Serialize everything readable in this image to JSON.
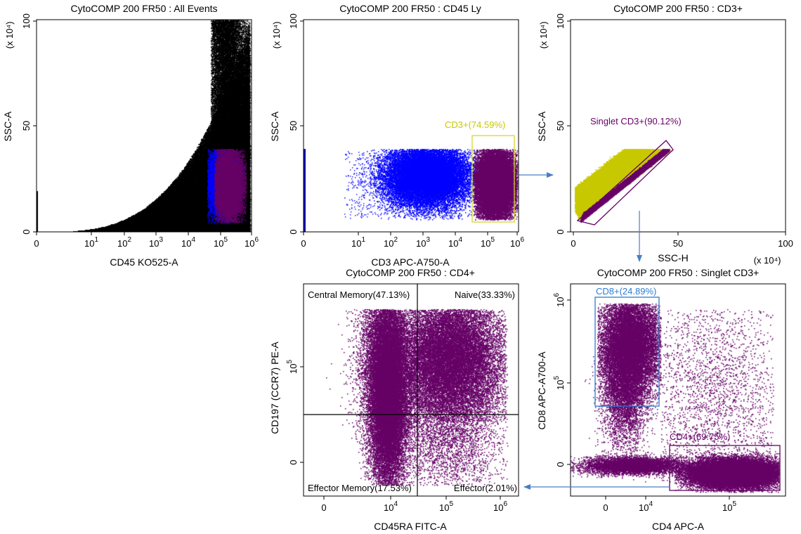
{
  "colors": {
    "black": "#000000",
    "blue": "#0000ff",
    "purple": "#660066",
    "yellow": "#c8c800",
    "gate_yellow": "#d6d630",
    "gate_blue": "#2c7cd1",
    "arrow": "#4a7ec4"
  },
  "chart_data": [
    {
      "type": "scatter",
      "title": "CytoCOMP 200 FR50 : All Events",
      "xlabel": "CD45 KO525-A",
      "ylabel": "SSC-A",
      "yscale_label": "(x 10⁴)",
      "xscale": "biexponential",
      "x_ticks": [
        {
          "label": "0",
          "sup": ""
        },
        {
          "label": "10",
          "sup": "1"
        },
        {
          "label": "10",
          "sup": "2"
        },
        {
          "label": "10",
          "sup": "3"
        },
        {
          "label": "10",
          "sup": "4"
        },
        {
          "label": "10",
          "sup": "5"
        },
        {
          "label": "10",
          "sup": "6"
        }
      ],
      "y_ticks": [
        "0",
        "50",
        "100"
      ],
      "ylim": [
        0,
        100
      ],
      "populations": [
        {
          "name": "all events",
          "color": "black"
        },
        {
          "name": "CD45 Ly",
          "color": "blue"
        },
        {
          "name": "CD3+",
          "color": "purple"
        }
      ]
    },
    {
      "type": "scatter",
      "title": "CytoCOMP 200 FR50 : CD45 Ly",
      "xlabel": "CD3 APC-A750-A",
      "ylabel": "SSC-A",
      "yscale_label": "(x 10⁴)",
      "xscale": "biexponential",
      "x_ticks": [
        {
          "label": "0",
          "sup": ""
        },
        {
          "label": "10",
          "sup": "1"
        },
        {
          "label": "10",
          "sup": "2"
        },
        {
          "label": "10",
          "sup": "3"
        },
        {
          "label": "10",
          "sup": "4"
        },
        {
          "label": "10",
          "sup": "5"
        },
        {
          "label": "10",
          "sup": "6"
        }
      ],
      "y_ticks": [
        "0",
        "50",
        "100"
      ],
      "ylim": [
        0,
        100
      ],
      "gate": {
        "label": "CD3+(74.59%)",
        "percent": 74.59,
        "shape": "rectangle"
      }
    },
    {
      "type": "scatter",
      "title": "CytoCOMP 200 FR50 : CD3+",
      "xlabel": "SSC-H",
      "ylabel": "SSC-A",
      "xscale_label": "(x 10⁴)",
      "yscale_label": "(x 10⁴)",
      "x_ticks": [
        "0",
        "50",
        "100"
      ],
      "y_ticks": [
        "0",
        "50",
        "100"
      ],
      "xlim": [
        0,
        100
      ],
      "ylim": [
        0,
        100
      ],
      "gate": {
        "label": "Singlet CD3+(90.12%)",
        "percent": 90.12,
        "shape": "polygon"
      }
    },
    {
      "type": "scatter",
      "title": "CytoCOMP 200 FR50 : CD4+",
      "xlabel": "CD45RA FITC-A",
      "ylabel": "CD197 (CCR7) PE-A",
      "x_ticks": [
        {
          "label": "0",
          "sup": ""
        },
        {
          "label": "10",
          "sup": "4"
        },
        {
          "label": "10",
          "sup": "5"
        },
        {
          "label": "10",
          "sup": "6"
        }
      ],
      "y_ticks": [
        {
          "label": "0",
          "sup": ""
        },
        {
          "label": "10",
          "sup": "5"
        }
      ],
      "quadrants": [
        {
          "label": "Central Memory(47.13%)",
          "percent": 47.13
        },
        {
          "label": "Naive(33.33%)",
          "percent": 33.33
        },
        {
          "label": "Effector Memory(17.53%)",
          "percent": 17.53
        },
        {
          "label": "Effector(2.01%)",
          "percent": 2.01
        }
      ]
    },
    {
      "type": "scatter",
      "title": "CytoCOMP 200 FR50 : Singlet CD3+",
      "xlabel": "CD4 APC-A",
      "ylabel": "CD8 APC-A700-A",
      "x_ticks": [
        {
          "label": "0",
          "sup": ""
        },
        {
          "label": "10",
          "sup": "4"
        },
        {
          "label": "10",
          "sup": "5"
        }
      ],
      "y_ticks": [
        {
          "label": "0",
          "sup": ""
        },
        {
          "label": "10",
          "sup": "5"
        },
        {
          "label": "10",
          "sup": "6"
        }
      ],
      "gates": [
        {
          "label": "CD8+(24.89%)",
          "percent": 24.89
        },
        {
          "label": "CD4+(69.75%)",
          "percent": 69.75
        }
      ]
    }
  ]
}
